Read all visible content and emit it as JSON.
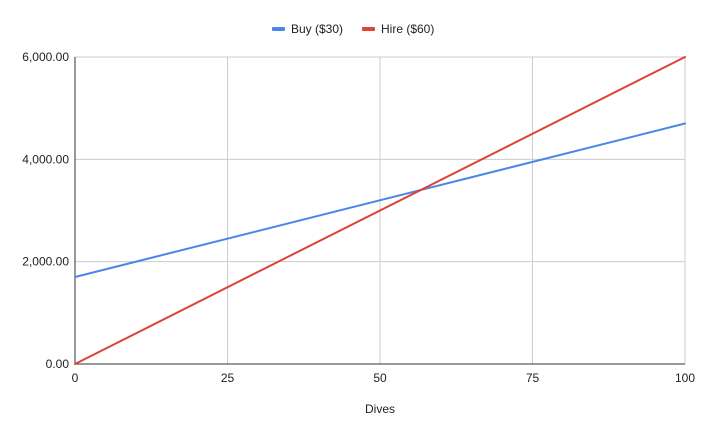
{
  "chart_data": {
    "type": "line",
    "title": "",
    "xlabel": "Dives",
    "ylabel": "",
    "xlim": [
      0,
      100
    ],
    "ylim": [
      0,
      6000
    ],
    "x_ticks": [
      0,
      25,
      50,
      75,
      100
    ],
    "x_tick_labels": [
      "0",
      "25",
      "50",
      "75",
      "100"
    ],
    "y_ticks": [
      0,
      2000,
      4000,
      6000
    ],
    "y_tick_labels": [
      "0.00",
      "2,000.00",
      "4,000.00",
      "6,000.00"
    ],
    "grid": true,
    "legend_position": "top-center",
    "series": [
      {
        "name": "Buy ($30)",
        "color": "#4a86e8",
        "x": [
          0,
          100
        ],
        "values": [
          1700,
          4700
        ]
      },
      {
        "name": "Hire ($60)",
        "color": "#db4437",
        "x": [
          0,
          100
        ],
        "values": [
          0,
          6000
        ]
      }
    ]
  }
}
